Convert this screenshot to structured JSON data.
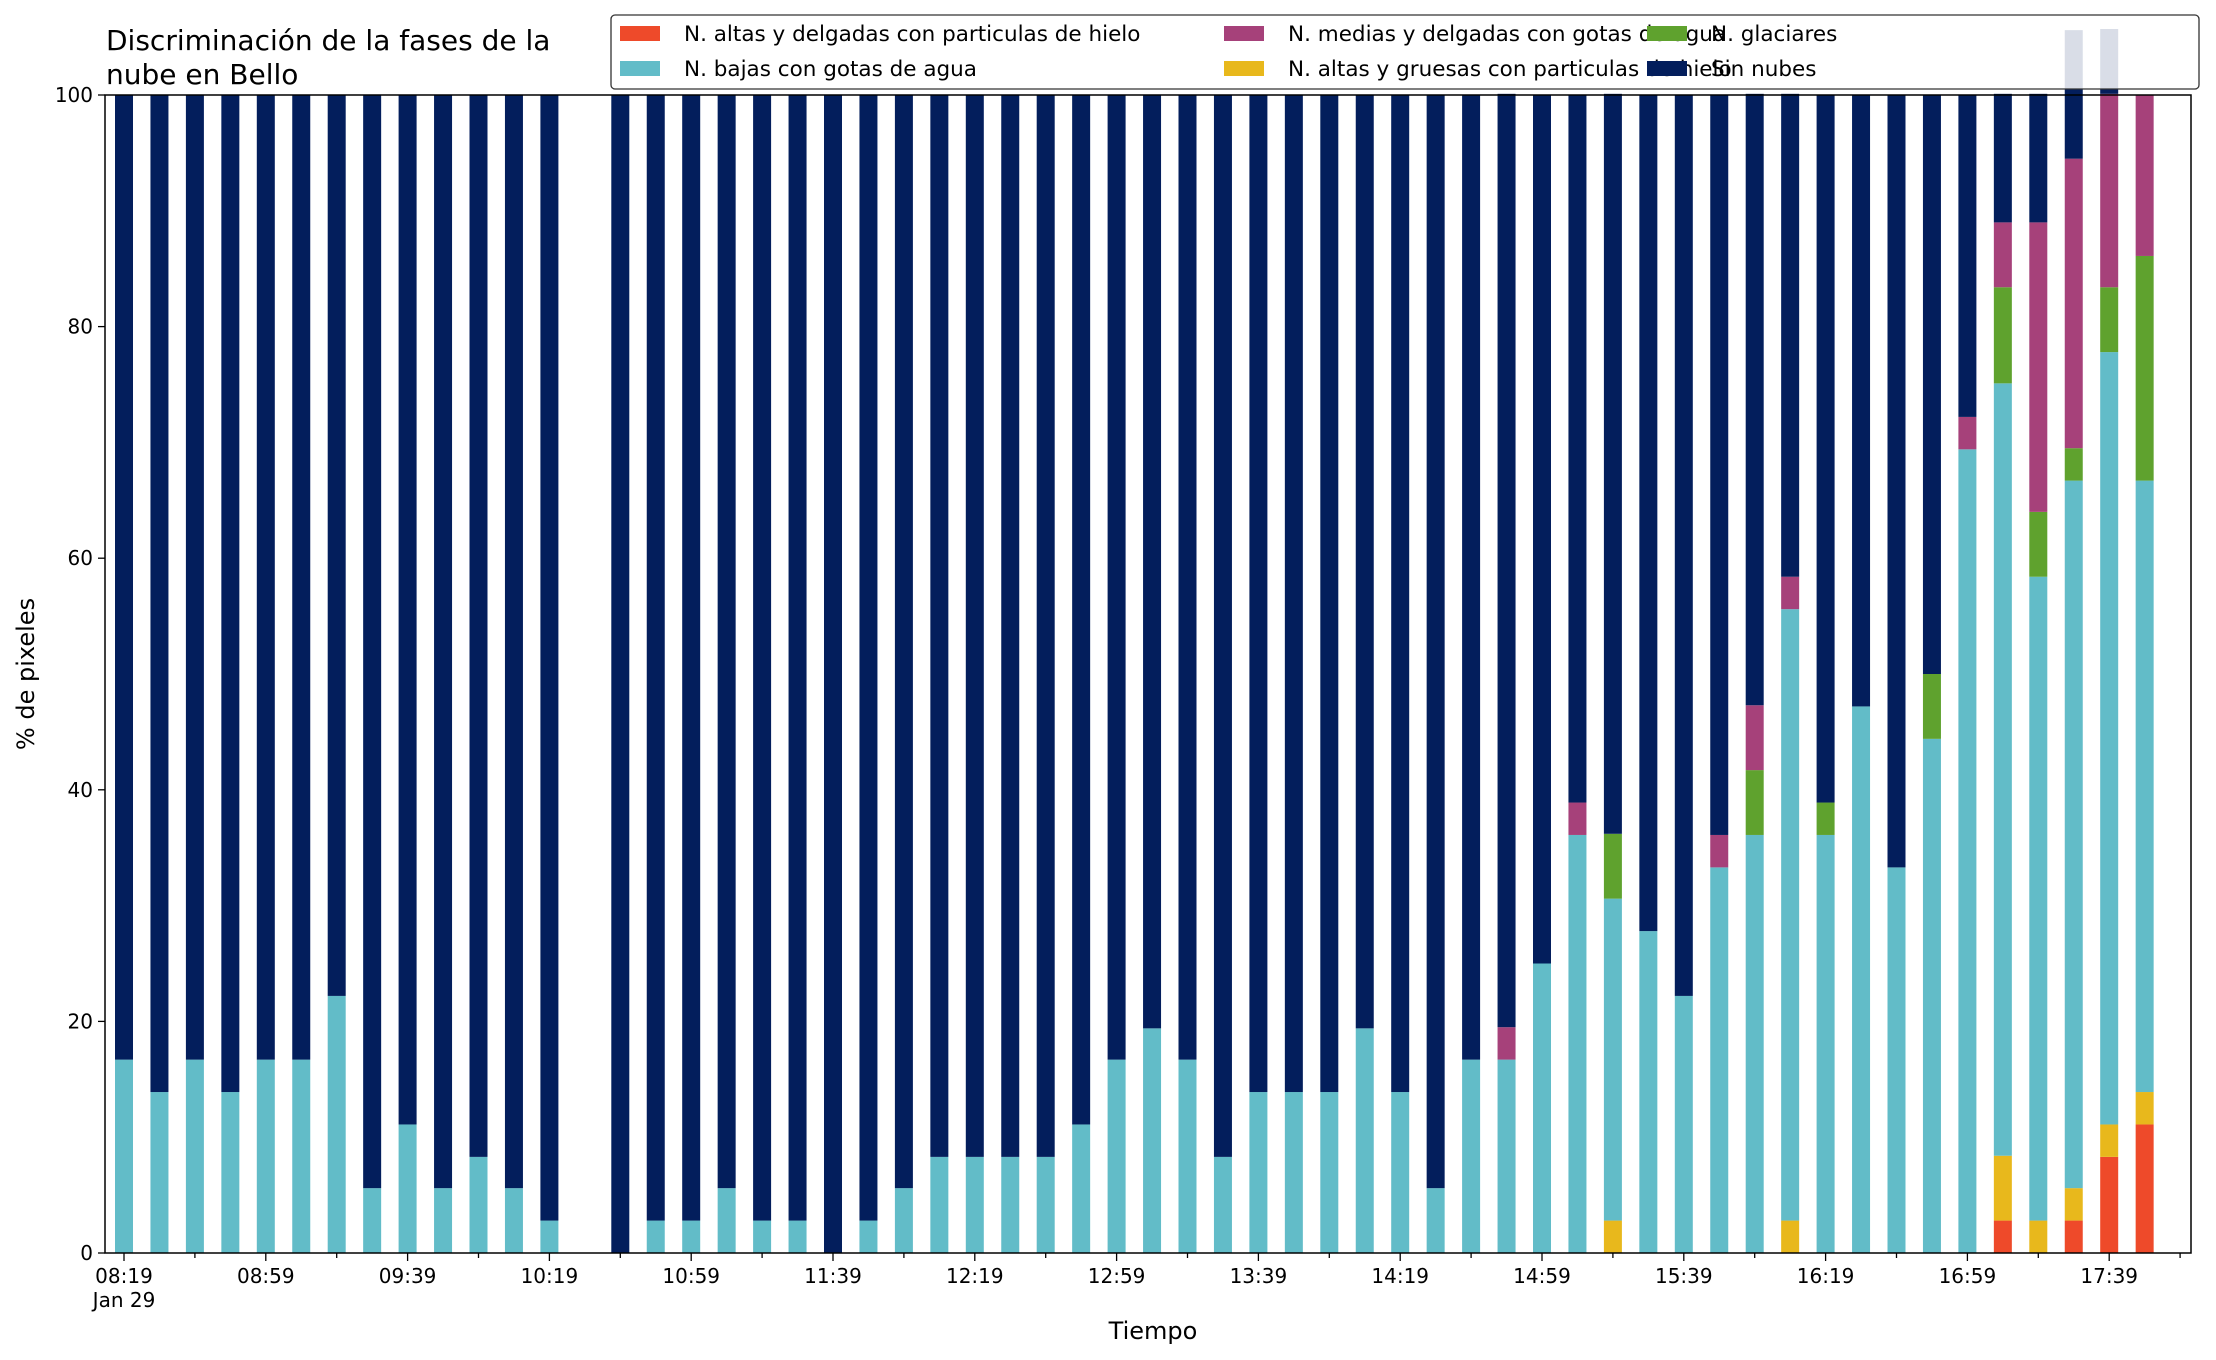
{
  "chart_data": {
    "type": "bar",
    "stacked": true,
    "title_lines": [
      "Discriminación de la fases de la",
      "nube en Bello"
    ],
    "xlabel": "Tiempo",
    "ylabel": "% de pixeles",
    "ylim": [
      0,
      100
    ],
    "yticks": [
      0,
      20,
      40,
      60,
      80,
      100
    ],
    "grid": false,
    "legend_position": "top-right",
    "x_tick_labels": [
      {
        "index": 0,
        "label": "08:19",
        "sublabel": "Jan 29"
      },
      {
        "index": 4,
        "label": "08:59"
      },
      {
        "index": 8,
        "label": "09:39"
      },
      {
        "index": 12,
        "label": "10:19"
      },
      {
        "index": 16,
        "label": "10:59"
      },
      {
        "index": 20,
        "label": "11:39"
      },
      {
        "index": 24,
        "label": "12:19"
      },
      {
        "index": 28,
        "label": "12:59"
      },
      {
        "index": 32,
        "label": "13:39"
      },
      {
        "index": 36,
        "label": "14:19"
      },
      {
        "index": 40,
        "label": "14:59"
      },
      {
        "index": 44,
        "label": "15:39"
      },
      {
        "index": 48,
        "label": "16:19"
      },
      {
        "index": 52,
        "label": "16:59"
      },
      {
        "index": 56,
        "label": "17:39"
      }
    ],
    "bar_count": 58,
    "series": [
      {
        "name": "N. altas y delgadas con particulas de hielo",
        "color": "#ee4a2a",
        "values": [
          0,
          0,
          0,
          0,
          0,
          0,
          0,
          0,
          0,
          0,
          0,
          0,
          0,
          0,
          0,
          0,
          0,
          0,
          0,
          0,
          0,
          0,
          0,
          0,
          0,
          0,
          0,
          0,
          0,
          0,
          0,
          0,
          0,
          0,
          0,
          0,
          0,
          0,
          0,
          0,
          0,
          0,
          0,
          0,
          0,
          0,
          0,
          0,
          0,
          0,
          0,
          0,
          0,
          2.8,
          0,
          2.8,
          8.3,
          11.1
        ]
      },
      {
        "name": "N. altas y gruesas con particulas de hielo",
        "color": "#e8b81c",
        "values": [
          0,
          0,
          0,
          0,
          0,
          0,
          0,
          0,
          0,
          0,
          0,
          0,
          0,
          0,
          0,
          0,
          0,
          0,
          0,
          0,
          0,
          0,
          0,
          0,
          0,
          0,
          0,
          0,
          0,
          0,
          0,
          0,
          0,
          0,
          0,
          0,
          0,
          0,
          0,
          0,
          0,
          0,
          2.8,
          0,
          0,
          0,
          0,
          2.8,
          0,
          0,
          0,
          0,
          0,
          5.6,
          2.8,
          2.8,
          2.8,
          2.8
        ]
      },
      {
        "name": "N. bajas con gotas de agua",
        "color": "#62bcc8",
        "values": [
          16.7,
          13.9,
          16.7,
          13.9,
          16.7,
          16.7,
          22.2,
          5.6,
          11.1,
          5.6,
          8.3,
          5.6,
          2.8,
          0,
          0,
          2.8,
          2.8,
          5.6,
          2.8,
          2.8,
          0,
          2.8,
          5.6,
          8.3,
          8.3,
          8.3,
          8.3,
          11.1,
          16.7,
          19.4,
          16.7,
          8.3,
          13.9,
          13.9,
          13.9,
          19.4,
          13.9,
          5.6,
          16.7,
          16.7,
          25,
          36.1,
          27.8,
          27.8,
          22.2,
          33.3,
          36.1,
          52.8,
          36.1,
          47.2,
          33.3,
          44.4,
          69.4,
          66.7,
          55.6,
          61.1,
          66.7,
          52.8
        ]
      },
      {
        "name": "N. glaciares",
        "color": "#5fa22e",
        "values": [
          0,
          0,
          0,
          0,
          0,
          0,
          0,
          0,
          0,
          0,
          0,
          0,
          0,
          0,
          0,
          0,
          0,
          0,
          0,
          0,
          0,
          0,
          0,
          0,
          0,
          0,
          0,
          0,
          0,
          0,
          0,
          0,
          0,
          0,
          0,
          0,
          0,
          0,
          0,
          0,
          0,
          0,
          5.6,
          0,
          0,
          0,
          5.6,
          0,
          2.8,
          0,
          0,
          5.6,
          0,
          8.3,
          5.6,
          2.8,
          5.6,
          19.4
        ]
      },
      {
        "name": "N. medias y delgadas con gotas de agua",
        "color": "#a6417a",
        "values": [
          0,
          0,
          0,
          0,
          0,
          0,
          0,
          0,
          0,
          0,
          0,
          0,
          0,
          0,
          0,
          0,
          0,
          0,
          0,
          0,
          0,
          0,
          0,
          0,
          0,
          0,
          0,
          0,
          0,
          0,
          0,
          0,
          0,
          0,
          0,
          0,
          0,
          0,
          0,
          2.8,
          0,
          2.8,
          0,
          0,
          0,
          2.8,
          5.6,
          2.8,
          0,
          0,
          0,
          0,
          2.8,
          5.6,
          25,
          25,
          16.7,
          13.9
        ]
      },
      {
        "name": "Sin nubes",
        "color": "#031e5c",
        "values": [
          83.3,
          86.1,
          83.3,
          86.1,
          83.3,
          83.3,
          77.8,
          94.4,
          88.9,
          94.4,
          91.7,
          94.4,
          97.2,
          0,
          100,
          97.2,
          97.2,
          94.4,
          97.2,
          97.2,
          100,
          97.2,
          94.4,
          91.7,
          91.7,
          91.7,
          91.7,
          88.9,
          83.3,
          80.6,
          83.3,
          91.7,
          86.1,
          86.1,
          86.1,
          80.6,
          86.1,
          94.4,
          83.3,
          80.6,
          75,
          61.1,
          63.9,
          72.2,
          77.8,
          63.9,
          52.8,
          41.7,
          61.1,
          52.8,
          66.7,
          50,
          27.8,
          11.1,
          11.1,
          11.1,
          5.6,
          0
        ]
      }
    ],
    "legend_order": [
      0,
      2,
      4,
      1,
      3,
      5
    ]
  }
}
